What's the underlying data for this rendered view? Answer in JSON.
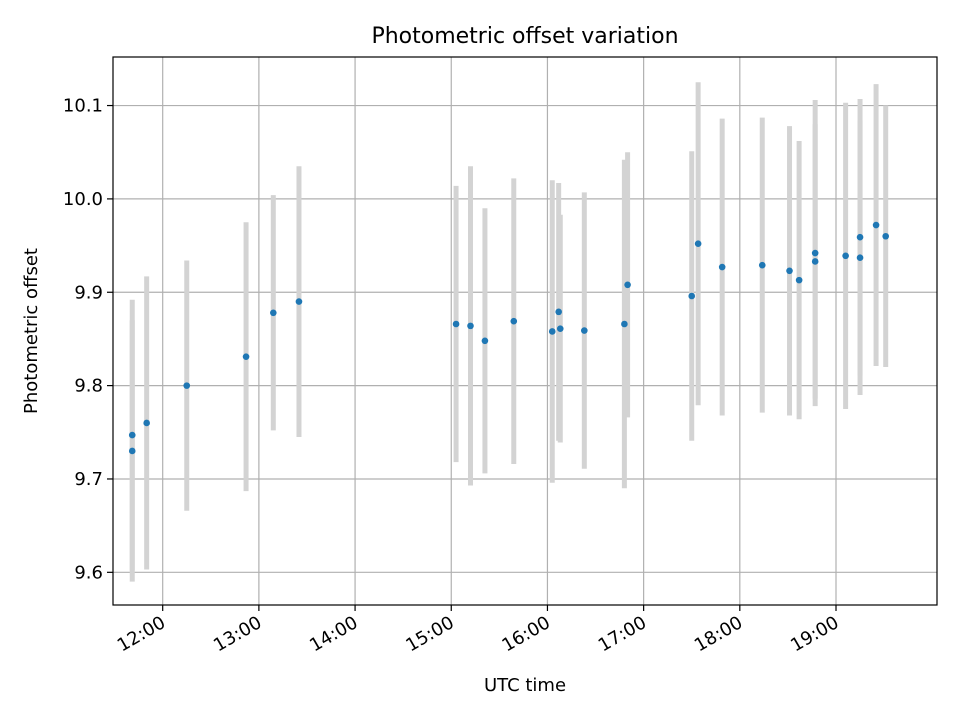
{
  "chart_data": {
    "type": "scatter",
    "title": "Photometric offset variation",
    "xlabel": "UTC time",
    "ylabel": "Photometric offset",
    "xlim": [
      "11:29",
      "20:03"
    ],
    "ylim": [
      9.565,
      10.152
    ],
    "x_ticks": [
      "12:00",
      "13:00",
      "14:00",
      "15:00",
      "16:00",
      "17:00",
      "18:00",
      "19:00"
    ],
    "y_ticks": [
      9.6,
      9.7,
      9.8,
      9.9,
      10.0,
      10.1
    ],
    "y_tick_labels": [
      "9.6",
      "9.7",
      "9.8",
      "9.9",
      "10.0",
      "10.1"
    ],
    "grid": true,
    "point_color": "#1f77b4",
    "errorbar_color": "#d3d3d3",
    "points": [
      {
        "x": "11:41",
        "y": 9.747,
        "yerr": 0.145
      },
      {
        "x": "11:41",
        "y": 9.73,
        "yerr": 0.14
      },
      {
        "x": "11:50",
        "y": 9.76,
        "yerr": 0.157
      },
      {
        "x": "12:15",
        "y": 9.8,
        "yerr": 0.134
      },
      {
        "x": "12:52",
        "y": 9.831,
        "yerr": 0.144
      },
      {
        "x": "13:09",
        "y": 9.878,
        "yerr": 0.126
      },
      {
        "x": "13:25",
        "y": 9.89,
        "yerr": 0.145
      },
      {
        "x": "15:03",
        "y": 9.866,
        "yerr": 0.148
      },
      {
        "x": "15:12",
        "y": 9.864,
        "yerr": 0.171
      },
      {
        "x": "15:21",
        "y": 9.848,
        "yerr": 0.142
      },
      {
        "x": "15:39",
        "y": 9.869,
        "yerr": 0.153
      },
      {
        "x": "16:03",
        "y": 9.858,
        "yerr": 0.162
      },
      {
        "x": "16:07",
        "y": 9.879,
        "yerr": 0.138
      },
      {
        "x": "16:08",
        "y": 9.861,
        "yerr": 0.122
      },
      {
        "x": "16:23",
        "y": 9.859,
        "yerr": 0.148
      },
      {
        "x": "16:48",
        "y": 9.866,
        "yerr": 0.176
      },
      {
        "x": "16:50",
        "y": 9.908,
        "yerr": 0.142
      },
      {
        "x": "17:30",
        "y": 9.896,
        "yerr": 0.155
      },
      {
        "x": "17:34",
        "y": 9.952,
        "yerr": 0.173
      },
      {
        "x": "17:49",
        "y": 9.927,
        "yerr": 0.159
      },
      {
        "x": "18:14",
        "y": 9.929,
        "yerr": 0.158
      },
      {
        "x": "18:31",
        "y": 9.923,
        "yerr": 0.155
      },
      {
        "x": "18:37",
        "y": 9.913,
        "yerr": 0.149
      },
      {
        "x": "18:47",
        "y": 9.942,
        "yerr": 0.164
      },
      {
        "x": "18:47",
        "y": 9.933,
        "yerr": 0.147
      },
      {
        "x": "19:06",
        "y": 9.939,
        "yerr": 0.164
      },
      {
        "x": "19:15",
        "y": 9.937,
        "yerr": 0.147
      },
      {
        "x": "19:15",
        "y": 9.959,
        "yerr": 0.148
      },
      {
        "x": "19:25",
        "y": 9.972,
        "yerr": 0.151
      },
      {
        "x": "19:31",
        "y": 9.96,
        "yerr": 0.14
      }
    ]
  }
}
